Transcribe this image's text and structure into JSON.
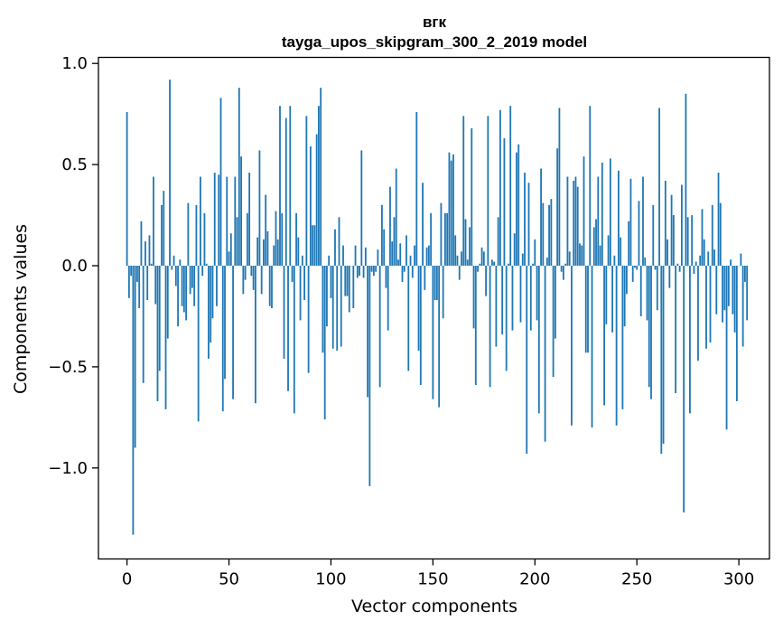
{
  "chart_data": {
    "type": "bar",
    "title": "вгк",
    "subtitle": "tayga_upos_skipgram_300_2_2019 model",
    "xlabel": "Vector components",
    "ylabel": "Components values",
    "xlim": [
      -14,
      315
    ],
    "ylim": [
      -1.45,
      1.03
    ],
    "x_ticks": [
      0,
      50,
      100,
      150,
      200,
      250,
      300
    ],
    "y_ticks": [
      -1.0,
      -0.5,
      0.0,
      0.5,
      1.0
    ],
    "x_tick_labels": [
      "0",
      "50",
      "100",
      "150",
      "200",
      "250",
      "300"
    ],
    "y_tick_labels": [
      "−1.0",
      "−0.5",
      "0.0",
      "0.5",
      "1.0"
    ],
    "bar_color": "#1f77b4",
    "values": [
      0.76,
      -0.16,
      -0.05,
      -1.33,
      -0.9,
      -0.08,
      -0.21,
      0.22,
      -0.58,
      0.12,
      -0.17,
      0.15,
      0.01,
      0.44,
      -0.19,
      -0.67,
      -0.52,
      0.3,
      0.37,
      -0.71,
      -0.36,
      0.92,
      -0.02,
      0.05,
      -0.1,
      -0.3,
      0.03,
      -0.2,
      -0.23,
      -0.27,
      0.31,
      -0.14,
      -0.11,
      -0.2,
      0.3,
      -0.77,
      0.44,
      -0.05,
      0.26,
      0.01,
      -0.46,
      -0.38,
      -0.26,
      0.46,
      -0.2,
      0.45,
      0.83,
      -0.72,
      -0.56,
      0.44,
      0.07,
      0.16,
      -0.66,
      0.44,
      0.24,
      0.88,
      0.54,
      -0.14,
      -0.07,
      0.26,
      0.46,
      -0.05,
      -0.12,
      -0.68,
      0.14,
      0.57,
      -0.14,
      0.13,
      0.35,
      0.17,
      -0.2,
      -0.21,
      0.1,
      0.27,
      0.13,
      0.79,
      0.26,
      -0.46,
      0.73,
      -0.62,
      0.79,
      -0.08,
      -0.73,
      0.26,
      0.14,
      -0.27,
      0.05,
      -0.17,
      0.74,
      -0.53,
      0.59,
      0.2,
      0.2,
      0.65,
      0.79,
      0.88,
      -0.43,
      -0.76,
      -0.3,
      0.05,
      -0.16,
      -0.41,
      0.18,
      -0.42,
      0.24,
      -0.4,
      0.1,
      -0.15,
      -0.15,
      -0.23,
      0.0,
      -0.21,
      0.1,
      -0.06,
      -0.05,
      0.57,
      -0.06,
      0.09,
      -0.65,
      -1.09,
      -0.03,
      -0.05,
      -0.03,
      0.08,
      -0.6,
      0.3,
      0.18,
      -0.11,
      -0.32,
      0.39,
      0.12,
      0.24,
      0.48,
      0.03,
      0.11,
      -0.08,
      -0.03,
      0.15,
      -0.52,
      0.05,
      -0.06,
      0.1,
      0.76,
      -0.42,
      -0.59,
      0.41,
      -0.12,
      0.09,
      0.1,
      0.26,
      -0.66,
      -0.17,
      -0.17,
      -0.7,
      0.31,
      -0.26,
      0.26,
      0.26,
      0.56,
      0.52,
      0.55,
      0.15,
      0.05,
      -0.07,
      0.07,
      0.74,
      0.23,
      0.03,
      0.19,
      0.68,
      -0.31,
      -0.59,
      -0.03,
      0.01,
      0.09,
      0.07,
      -0.15,
      0.74,
      -0.6,
      0.03,
      0.02,
      -0.4,
      0.24,
      0.77,
      -0.34,
      0.63,
      -0.52,
      0.01,
      0.79,
      -0.32,
      0.16,
      0.56,
      0.6,
      -0.28,
      0.06,
      0.46,
      -0.93,
      0.41,
      -0.32,
      0.01,
      0.13,
      -0.27,
      -0.73,
      0.48,
      0.31,
      -0.87,
      0.04,
      0.3,
      0.33,
      -0.55,
      -0.36,
      0.58,
      0.78,
      -0.03,
      -0.07,
      0.01,
      0.44,
      0.07,
      -0.79,
      0.42,
      0.44,
      0.39,
      0.11,
      0.1,
      0.54,
      -0.43,
      -0.43,
      0.79,
      -0.8,
      0.19,
      0.23,
      0.44,
      0.1,
      0.51,
      -0.69,
      -0.29,
      0.15,
      0.53,
      -0.33,
      0.05,
      -0.79,
      0.47,
      0.14,
      -0.71,
      -0.3,
      -0.14,
      0.22,
      0.43,
      -0.08,
      -0.01,
      -0.02,
      0.32,
      -0.25,
      0.44,
      0.04,
      -0.27,
      -0.6,
      -0.66,
      0.3,
      -0.02,
      -0.22,
      0.78,
      -0.93,
      -0.88,
      0.42,
      0.13,
      -0.11,
      0.35,
      0.25,
      -0.63,
      0.01,
      -0.03,
      0.4,
      -1.22,
      0.85,
      0.24,
      -0.73,
      0.25,
      -0.04,
      0.02,
      -0.47,
      0.05,
      0.28,
      0.13,
      -0.41,
      0.07,
      -0.38,
      0.3,
      0.08,
      -0.24,
      0.46,
      0.31,
      -0.28,
      -0.22,
      -0.81,
      -0.2,
      0.03,
      -0.24,
      -0.33,
      -0.67,
      0.0,
      0.06,
      -0.4,
      -0.08,
      -0.27
    ]
  }
}
